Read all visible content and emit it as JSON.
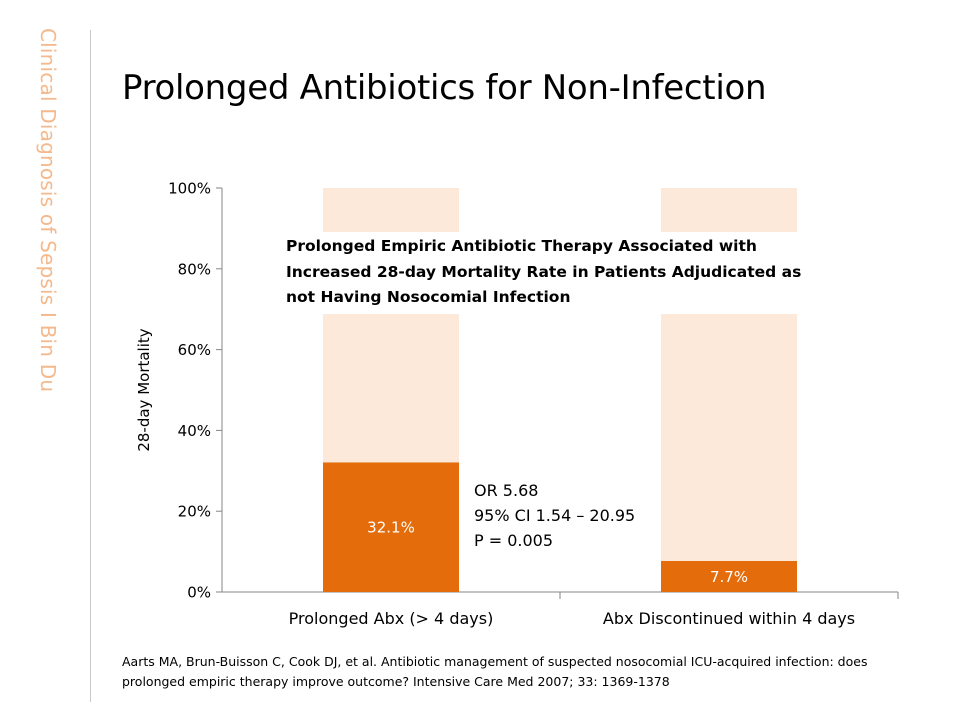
{
  "slide": {
    "side_label_main": "Clinical Diagnosis of Sepsis",
    "side_label_sep": "I",
    "side_label_author": "Bin Du",
    "title": "Prolonged Antibiotics for Non-Infection"
  },
  "annotation": {
    "lines": [
      "Prolonged Empiric Antibiotic Therapy Associated with",
      "Increased 28-day Mortality Rate in Patients Adjudicated as",
      "not Having Nosocomial Infection"
    ]
  },
  "stats": {
    "lines": [
      "OR 5.68",
      "95% CI 1.54 – 20.95",
      "P = 0.005"
    ]
  },
  "reference": {
    "lines": [
      "Aarts MA, Brun-Buisson C, Cook DJ, et al. Antibiotic management of suspected nosocomial ICU-acquired infection: does",
      "prolonged empiric therapy improve outcome? Intensive Care Med 2007; 33: 1369-1378"
    ]
  },
  "chart_data": {
    "type": "bar",
    "stacked": true,
    "categories": [
      "Prolonged Abx (> 4 days)",
      "Abx Discontinued within 4 days"
    ],
    "series": [
      {
        "values": [
          32.1,
          7.7
        ],
        "labels": [
          "32.1%",
          "7.7%"
        ],
        "color": "#e46c0a"
      },
      {
        "values": [
          67.9,
          92.3
        ],
        "color": "#fde9d9"
      }
    ],
    "ylabel": "28-day Mortality",
    "yticks": [
      "0%",
      "20%",
      "40%",
      "60%",
      "80%",
      "100%"
    ],
    "ylim": [
      0,
      100
    ],
    "grid": false
  }
}
